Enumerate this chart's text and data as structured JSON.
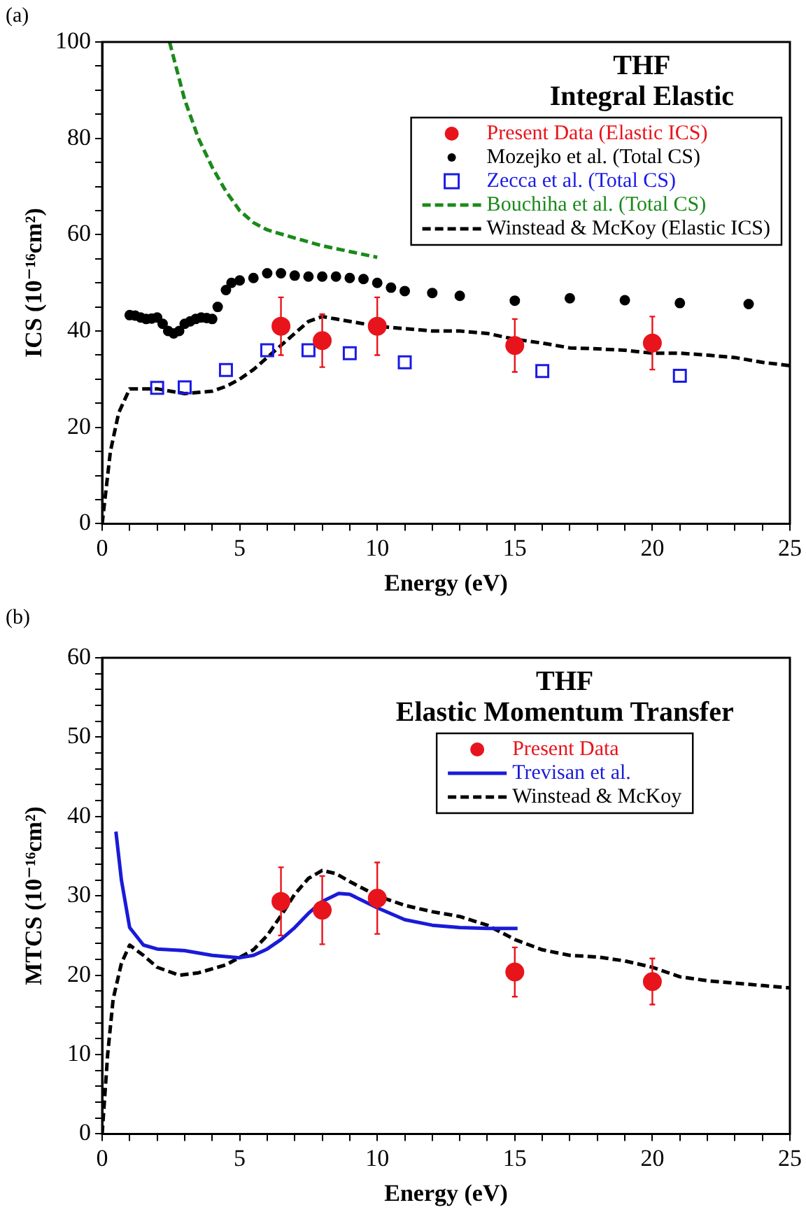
{
  "chart_data": [
    {
      "type": "line",
      "title": "THF",
      "subtitle": "Integral Elastic",
      "xlabel": "Energy (eV)",
      "ylabel": "ICS (10⁻¹⁶cm²)",
      "xlim": [
        0,
        25
      ],
      "ylim": [
        0,
        100
      ],
      "xticks": [
        0,
        {
          "value": 1,
          "label": null
        },
        {
          "value": 2,
          "label": null
        },
        {
          "value": 3,
          "label": null
        },
        {
          "value": 4,
          "label": null
        },
        5,
        {
          "value": 6,
          "label": null
        },
        {
          "value": 7,
          "label": null
        },
        {
          "value": 8,
          "label": null
        },
        {
          "value": 9,
          "label": null
        },
        10,
        {
          "value": 11,
          "label": null
        },
        {
          "value": 12,
          "label": null
        },
        {
          "value": 13,
          "label": null
        },
        {
          "value": 14,
          "label": null
        },
        15,
        {
          "value": 16,
          "label": null
        },
        {
          "value": 17,
          "label": null
        },
        {
          "value": 18,
          "label": null
        },
        {
          "value": 19,
          "label": null
        },
        20,
        {
          "value": 21,
          "label": null
        },
        {
          "value": 22,
          "label": null
        },
        {
          "value": 23,
          "label": null
        },
        {
          "value": 24,
          "label": null
        },
        25
      ],
      "yticks": [
        0,
        {
          "value": 5,
          "label": null
        },
        {
          "value": 10,
          "label": null
        },
        {
          "value": 15,
          "label": null
        },
        20,
        {
          "value": 25,
          "label": null
        },
        {
          "value": 30,
          "label": null
        },
        {
          "value": 35,
          "label": null
        },
        40,
        {
          "value": 45,
          "label": null
        },
        {
          "value": 50,
          "label": null
        },
        {
          "value": 55,
          "label": null
        },
        60,
        {
          "value": 65,
          "label": null
        },
        {
          "value": 70,
          "label": null
        },
        {
          "value": 75,
          "label": null
        },
        80,
        {
          "value": 85,
          "label": null
        },
        {
          "value": 90,
          "label": null
        },
        {
          "value": 95,
          "label": null
        },
        100
      ],
      "grid": false,
      "legend": "top right",
      "annotations": [
        "(a)"
      ],
      "series": [
        {
          "name": "Present Data (Elastic ICS)",
          "type": "scatter",
          "marker": "circle",
          "color": "#e8141c",
          "x": [
            6.5,
            8,
            10,
            15,
            20
          ],
          "values": [
            41,
            38,
            41,
            37,
            37.5
          ],
          "errors": [
            6,
            5.5,
            6,
            5.5,
            5.5
          ]
        },
        {
          "name": "Mozejko et al. (Total CS)",
          "type": "scatter",
          "marker": "circle",
          "color": "#000000",
          "x": [
            1.0,
            1.2,
            1.4,
            1.6,
            1.8,
            2.0,
            2.2,
            2.4,
            2.6,
            2.8,
            3.0,
            3.2,
            3.4,
            3.6,
            3.8,
            4.0,
            4.2,
            4.5,
            4.7,
            5.0,
            5.5,
            6,
            6.5,
            7,
            7.5,
            8,
            8.5,
            9,
            9.5,
            10,
            10.5,
            11,
            12,
            13,
            15,
            17,
            19,
            21,
            23.5
          ],
          "values": [
            43.3,
            43.2,
            42.8,
            42.5,
            42.6,
            42.8,
            41.5,
            40,
            39.5,
            40,
            41.5,
            42,
            42.5,
            42.8,
            42.7,
            42.5,
            45,
            48.5,
            50,
            50.5,
            51,
            52,
            52,
            51.5,
            51.3,
            51.3,
            51.3,
            51,
            50.8,
            50,
            49,
            48.3,
            47.9,
            47.3,
            46.3,
            46.8,
            46.4,
            45.8,
            45.6
          ]
        },
        {
          "name": "Zecca et al. (Total CS)",
          "type": "scatter",
          "marker": "square",
          "color": "#1a1ae6",
          "x": [
            2,
            3,
            4.5,
            6,
            7.5,
            9,
            11,
            16,
            21
          ],
          "values": [
            28.2,
            28.3,
            31.9,
            36,
            36,
            35.4,
            33.5,
            31.7,
            30.7
          ]
        },
        {
          "name": "Bouchiha et al. (Total CS)",
          "type": "line",
          "marker": "none",
          "line_style": "dashed",
          "color": "#1a8a1a",
          "x": [
            2.45,
            3,
            3.5,
            4,
            4.5,
            5,
            5.5,
            6,
            7,
            8,
            9,
            10
          ],
          "values": [
            100,
            88,
            80,
            74,
            69,
            65,
            62.5,
            61,
            59.3,
            57.7,
            56.5,
            55.3
          ]
        },
        {
          "name": "Winstead & McKoy (Elastic ICS)",
          "type": "line",
          "marker": "none",
          "line_style": "dashed",
          "color": "#000000",
          "x": [
            0,
            0.3,
            0.6,
            1,
            2,
            3,
            4,
            4.5,
            5,
            5.5,
            6,
            6.5,
            7,
            7.5,
            8,
            8.5,
            9,
            10,
            11,
            12,
            13,
            14,
            15,
            16,
            17,
            18,
            19,
            20,
            21,
            22,
            23,
            24,
            25
          ],
          "values": [
            0,
            15,
            23,
            28,
            28,
            27,
            27.5,
            28.5,
            30,
            32,
            34.5,
            37,
            39.5,
            42,
            43,
            42.5,
            42,
            41,
            40.5,
            40,
            40,
            39.5,
            38.3,
            37.5,
            36.5,
            36.3,
            36,
            35.4,
            35.4,
            35,
            34.5,
            33.5,
            32.8
          ]
        }
      ]
    },
    {
      "type": "line",
      "title": "THF",
      "subtitle": "Elastic Momentum Transfer",
      "xlabel": "Energy (eV)",
      "ylabel": "MTCS (10⁻¹⁶cm²)",
      "xlim": [
        0,
        25
      ],
      "ylim": [
        0,
        60
      ],
      "xticks": [
        0,
        {
          "value": 1,
          "label": null
        },
        {
          "value": 2,
          "label": null
        },
        {
          "value": 3,
          "label": null
        },
        {
          "value": 4,
          "label": null
        },
        5,
        {
          "value": 6,
          "label": null
        },
        {
          "value": 7,
          "label": null
        },
        {
          "value": 8,
          "label": null
        },
        {
          "value": 9,
          "label": null
        },
        10,
        {
          "value": 11,
          "label": null
        },
        {
          "value": 12,
          "label": null
        },
        {
          "value": 13,
          "label": null
        },
        {
          "value": 14,
          "label": null
        },
        15,
        {
          "value": 16,
          "label": null
        },
        {
          "value": 17,
          "label": null
        },
        {
          "value": 18,
          "label": null
        },
        {
          "value": 19,
          "label": null
        },
        20,
        {
          "value": 21,
          "label": null
        },
        {
          "value": 22,
          "label": null
        },
        {
          "value": 23,
          "label": null
        },
        {
          "value": 24,
          "label": null
        },
        25
      ],
      "yticks": [
        0,
        {
          "value": 2,
          "label": null
        },
        {
          "value": 4,
          "label": null
        },
        {
          "value": 6,
          "label": null
        },
        {
          "value": 8,
          "label": null
        },
        10,
        {
          "value": 12,
          "label": null
        },
        {
          "value": 14,
          "label": null
        },
        {
          "value": 16,
          "label": null
        },
        {
          "value": 18,
          "label": null
        },
        20,
        {
          "value": 22,
          "label": null
        },
        {
          "value": 24,
          "label": null
        },
        {
          "value": 26,
          "label": null
        },
        {
          "value": 28,
          "label": null
        },
        30,
        {
          "value": 32,
          "label": null
        },
        {
          "value": 34,
          "label": null
        },
        {
          "value": 36,
          "label": null
        },
        {
          "value": 38,
          "label": null
        },
        40,
        {
          "value": 42,
          "label": null
        },
        {
          "value": 44,
          "label": null
        },
        {
          "value": 46,
          "label": null
        },
        {
          "value": 48,
          "label": null
        },
        50,
        {
          "value": 52,
          "label": null
        },
        {
          "value": 54,
          "label": null
        },
        {
          "value": 56,
          "label": null
        },
        {
          "value": 58,
          "label": null
        },
        60
      ],
      "grid": false,
      "legend": "top right",
      "annotations": [
        "(b)"
      ],
      "series": [
        {
          "name": "Present Data",
          "type": "scatter",
          "marker": "circle",
          "color": "#e8141c",
          "x": [
            6.5,
            8,
            10,
            15,
            20
          ],
          "values": [
            29.3,
            28.2,
            29.7,
            20.4,
            19.2
          ],
          "errors": [
            4.3,
            4.3,
            4.5,
            3.1,
            2.9
          ]
        },
        {
          "name": "Trevisan et al.",
          "type": "line",
          "marker": "none",
          "line_style": "solid",
          "color": "#1a1ad9",
          "x": [
            0.5,
            0.7,
            1,
            1.5,
            2,
            3,
            4,
            5,
            5.5,
            6,
            6.5,
            7,
            7.5,
            8,
            8.6,
            9,
            10,
            11,
            12,
            13,
            14,
            15.1
          ],
          "values": [
            38.1,
            32,
            26,
            23.8,
            23.3,
            23.1,
            22.5,
            22.2,
            22.5,
            23.3,
            24.5,
            26,
            27.8,
            29.3,
            30.3,
            30.2,
            28.5,
            27,
            26.3,
            26,
            25.9,
            25.9
          ]
        },
        {
          "name": "Winstead & McKoy",
          "type": "line",
          "marker": "none",
          "line_style": "dashed",
          "color": "#000000",
          "x": [
            0,
            0.2,
            0.4,
            0.7,
            1,
            1.5,
            2,
            2.8,
            3.5,
            4.5,
            5.5,
            6,
            6.5,
            7,
            7.5,
            8,
            8.5,
            9,
            10,
            11,
            12,
            13,
            14,
            15,
            16,
            17,
            18,
            19,
            20,
            21,
            22,
            23,
            24,
            25
          ],
          "values": [
            0,
            10,
            17,
            21.5,
            23.8,
            22.5,
            21,
            20,
            20.3,
            21.3,
            23.2,
            25,
            27.5,
            30.2,
            32.2,
            33.2,
            32.8,
            31.8,
            30,
            28.8,
            28,
            27.4,
            26.3,
            24.5,
            23.2,
            22.5,
            22.3,
            21.8,
            21,
            19.8,
            19.3,
            19,
            18.7,
            18.4
          ]
        }
      ]
    }
  ]
}
